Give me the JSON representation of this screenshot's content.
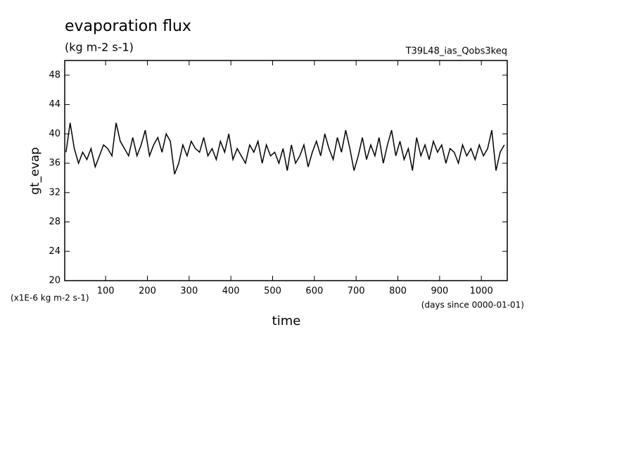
{
  "chart_data": {
    "type": "line",
    "title": "evaporation flux",
    "subtitle": "(kg m-2 s-1)",
    "annotation": "T39L48_ias_Qobs3keq",
    "y_label": "gt_evap",
    "x_label": "time",
    "y_units": "(x1E-6 kg m-2 s-1)",
    "x_units": "(days since 0000-01-01)",
    "xlim": [
      2,
      1062
    ],
    "ylim": [
      20,
      50
    ],
    "xticks": [
      100,
      200,
      300,
      400,
      500,
      600,
      700,
      800,
      900,
      1000
    ],
    "yticks": [
      20,
      24,
      28,
      32,
      36,
      40,
      44,
      48
    ],
    "series": [
      {
        "color": "#000000",
        "x": [
          5,
          15,
          25,
          35,
          45,
          55,
          65,
          75,
          85,
          95,
          105,
          115,
          125,
          135,
          145,
          155,
          165,
          175,
          185,
          195,
          205,
          215,
          225,
          235,
          245,
          255,
          265,
          275,
          285,
          295,
          305,
          315,
          325,
          335,
          345,
          355,
          365,
          375,
          385,
          395,
          405,
          415,
          425,
          435,
          445,
          455,
          465,
          475,
          485,
          495,
          505,
          515,
          525,
          535,
          545,
          555,
          565,
          575,
          585,
          595,
          605,
          615,
          625,
          635,
          645,
          655,
          665,
          675,
          685,
          695,
          705,
          715,
          725,
          735,
          745,
          755,
          765,
          775,
          785,
          795,
          805,
          815,
          825,
          835,
          845,
          855,
          865,
          875,
          885,
          895,
          905,
          915,
          925,
          935,
          945,
          955,
          965,
          975,
          985,
          995,
          1005,
          1015,
          1025,
          1035,
          1045,
          1055
        ],
        "values": [
          37.5,
          41.5,
          38,
          36,
          37.5,
          36.5,
          38,
          35.5,
          37,
          38.5,
          38,
          37,
          41.5,
          39,
          38,
          37,
          39.5,
          37,
          38.5,
          40.5,
          37,
          38.5,
          39.5,
          37.5,
          40,
          39,
          34.5,
          36,
          38.5,
          37,
          39,
          38,
          37.5,
          39.5,
          37,
          38,
          36.5,
          39,
          37.5,
          40,
          36.5,
          38,
          37,
          36,
          38.5,
          37.5,
          39,
          36,
          38.5,
          37,
          37.5,
          36,
          38,
          35,
          38.5,
          36,
          37,
          38.5,
          35.5,
          37.5,
          39,
          37,
          40,
          38,
          36.5,
          39.5,
          37.5,
          40.5,
          38,
          35,
          37,
          39.5,
          36.5,
          38.5,
          37,
          39.5,
          36,
          38.5,
          40.5,
          37,
          39,
          36.5,
          38,
          35,
          39.5,
          37,
          38.5,
          36.5,
          39,
          37.5,
          38.5,
          36,
          38,
          37.5,
          36,
          38.5,
          37,
          38,
          36.5,
          38.5,
          37,
          38,
          40.5,
          35,
          37.5,
          38.5
        ]
      }
    ]
  }
}
